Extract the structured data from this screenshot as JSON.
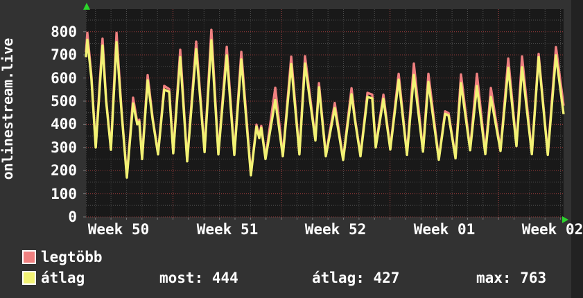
{
  "chart_data": {
    "type": "line",
    "title": "onlinestream.live",
    "ylabel": "onlinestream.live",
    "xlabel": "",
    "ylim": [
      0,
      898
    ],
    "y_ticks": [
      0,
      100,
      200,
      300,
      400,
      500,
      600,
      700,
      800
    ],
    "x_tick_labels": [
      "Week 50",
      "Week 51",
      "Week 52",
      "Week 01",
      "Week 02"
    ],
    "x_unit": "days (t=0 at left edge, ~30.8 days visible)",
    "grid": {
      "horizontal_minor_step": 50,
      "horizontal_major_step": 100,
      "vertical_minor": "1 day",
      "vertical_major": "1 week",
      "style": "dotted"
    },
    "legend_position": "bottom-left",
    "stats": {
      "most": 444,
      "átlag": 427,
      "max": 763
    },
    "series": [
      {
        "name": "legtöbb",
        "color": "#f08080",
        "points": [
          [
            0,
            712
          ],
          [
            0.09,
            795
          ],
          [
            0.35,
            612
          ],
          [
            0.63,
            305
          ],
          [
            1.07,
            770
          ],
          [
            1.3,
            508
          ],
          [
            1.61,
            295
          ],
          [
            1.97,
            795
          ],
          [
            2.3,
            458
          ],
          [
            2.64,
            176
          ],
          [
            3.04,
            515
          ],
          [
            3.31,
            408
          ],
          [
            3.44,
            420
          ],
          [
            3.62,
            255
          ],
          [
            3.98,
            612
          ],
          [
            4.3,
            428
          ],
          [
            4.65,
            275
          ],
          [
            5.05,
            566
          ],
          [
            5.37,
            552
          ],
          [
            5.63,
            280
          ],
          [
            6.08,
            722
          ],
          [
            6.53,
            246
          ],
          [
            7.11,
            757
          ],
          [
            7.65,
            286
          ],
          [
            8.09,
            808
          ],
          [
            8.54,
            276
          ],
          [
            9.08,
            735
          ],
          [
            9.57,
            273
          ],
          [
            10.02,
            713
          ],
          [
            10.64,
            186
          ],
          [
            11.0,
            398
          ],
          [
            11.18,
            347
          ],
          [
            11.31,
            393
          ],
          [
            11.58,
            255
          ],
          [
            12.21,
            558
          ],
          [
            12.7,
            267
          ],
          [
            13.24,
            692
          ],
          [
            13.77,
            276
          ],
          [
            14.13,
            694
          ],
          [
            14.8,
            336
          ],
          [
            15.03,
            578
          ],
          [
            15.47,
            267
          ],
          [
            16.05,
            492
          ],
          [
            16.59,
            251
          ],
          [
            17.13,
            556
          ],
          [
            17.35,
            427
          ],
          [
            17.71,
            267
          ],
          [
            18.16,
            536
          ],
          [
            18.47,
            528
          ],
          [
            18.69,
            305
          ],
          [
            19.19,
            528
          ],
          [
            19.63,
            296
          ],
          [
            20.17,
            618
          ],
          [
            20.71,
            273
          ],
          [
            21.15,
            662
          ],
          [
            21.74,
            287
          ],
          [
            22.09,
            618
          ],
          [
            22.76,
            252
          ],
          [
            23.17,
            456
          ],
          [
            23.39,
            448
          ],
          [
            23.84,
            258
          ],
          [
            24.19,
            615
          ],
          [
            24.78,
            293
          ],
          [
            25.22,
            618
          ],
          [
            25.76,
            276
          ],
          [
            26.12,
            557
          ],
          [
            26.74,
            290
          ],
          [
            27.24,
            684
          ],
          [
            27.77,
            311
          ],
          [
            28.13,
            693
          ],
          [
            28.76,
            276
          ],
          [
            29.2,
            704
          ],
          [
            29.79,
            273
          ],
          [
            30.32,
            734
          ],
          [
            30.81,
            480
          ]
        ]
      },
      {
        "name": "átlag",
        "color": "#f2f274",
        "points": [
          [
            0,
            690
          ],
          [
            0.09,
            765
          ],
          [
            0.35,
            600
          ],
          [
            0.63,
            300
          ],
          [
            1.07,
            740
          ],
          [
            1.3,
            500
          ],
          [
            1.61,
            290
          ],
          [
            1.97,
            755
          ],
          [
            2.3,
            450
          ],
          [
            2.64,
            170
          ],
          [
            3.04,
            490
          ],
          [
            3.31,
            400
          ],
          [
            3.44,
            412
          ],
          [
            3.62,
            250
          ],
          [
            3.98,
            590
          ],
          [
            4.3,
            420
          ],
          [
            4.65,
            270
          ],
          [
            5.05,
            550
          ],
          [
            5.37,
            540
          ],
          [
            5.63,
            275
          ],
          [
            6.08,
            690
          ],
          [
            6.53,
            240
          ],
          [
            7.11,
            725
          ],
          [
            7.65,
            280
          ],
          [
            8.09,
            763
          ],
          [
            8.54,
            270
          ],
          [
            9.08,
            698
          ],
          [
            9.57,
            268
          ],
          [
            10.02,
            680
          ],
          [
            10.64,
            180
          ],
          [
            11.0,
            390
          ],
          [
            11.18,
            340
          ],
          [
            11.31,
            385
          ],
          [
            11.58,
            250
          ],
          [
            12.21,
            505
          ],
          [
            12.7,
            262
          ],
          [
            13.24,
            660
          ],
          [
            13.77,
            270
          ],
          [
            14.13,
            662
          ],
          [
            14.8,
            330
          ],
          [
            15.03,
            560
          ],
          [
            15.47,
            262
          ],
          [
            16.05,
            470
          ],
          [
            16.59,
            246
          ],
          [
            17.13,
            530
          ],
          [
            17.35,
            419
          ],
          [
            17.71,
            262
          ],
          [
            18.16,
            518
          ],
          [
            18.47,
            512
          ],
          [
            18.69,
            300
          ],
          [
            19.19,
            510
          ],
          [
            19.63,
            291
          ],
          [
            20.17,
            593
          ],
          [
            20.71,
            268
          ],
          [
            21.15,
            613
          ],
          [
            21.74,
            282
          ],
          [
            22.09,
            583
          ],
          [
            22.76,
            247
          ],
          [
            23.17,
            445
          ],
          [
            23.39,
            438
          ],
          [
            23.84,
            253
          ],
          [
            24.19,
            578
          ],
          [
            24.78,
            288
          ],
          [
            25.22,
            565
          ],
          [
            25.76,
            271
          ],
          [
            26.12,
            518
          ],
          [
            26.74,
            285
          ],
          [
            27.24,
            644
          ],
          [
            27.77,
            306
          ],
          [
            28.13,
            647
          ],
          [
            28.76,
            271
          ],
          [
            29.2,
            690
          ],
          [
            29.79,
            268
          ],
          [
            30.32,
            698
          ],
          [
            30.81,
            444
          ]
        ]
      }
    ]
  },
  "legend": {
    "items": [
      {
        "label": "legtöbb",
        "color": "#f08080"
      },
      {
        "label": "átlag",
        "color": "#f2f274"
      }
    ],
    "stats": [
      {
        "text": "most: 444"
      },
      {
        "text": "átlag: 427"
      },
      {
        "text": "max: 763"
      }
    ]
  },
  "colors": {
    "background_outer": "#323232",
    "background_plot": "#191919",
    "grid_minor": "#4e4e4e",
    "grid_major": "#a03c3c",
    "tick_minor": "#7a7a7a",
    "axis_arrow": "#2bd42b",
    "text": "#ffffff"
  }
}
